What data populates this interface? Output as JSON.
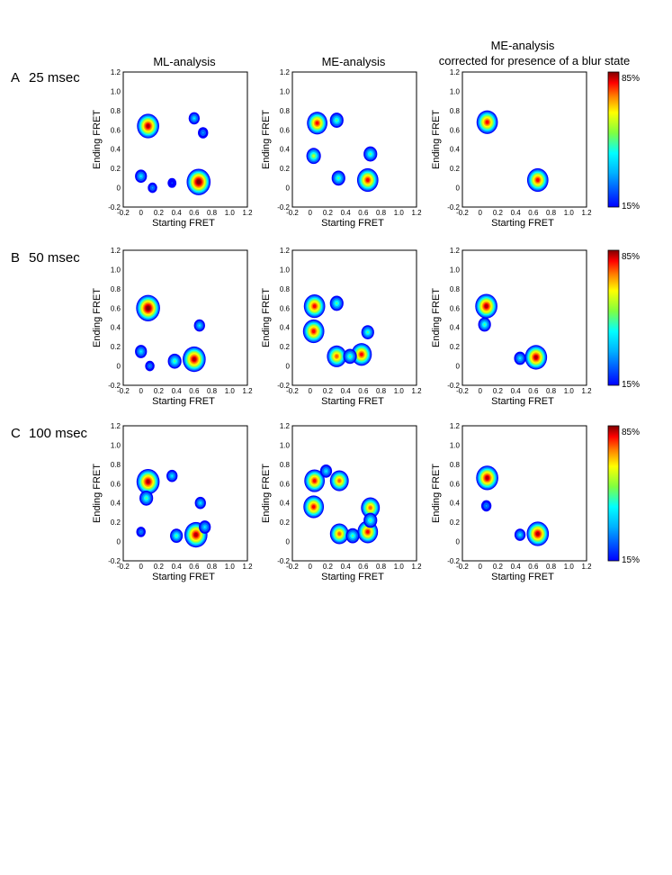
{
  "figure": {
    "columns": [
      "ML-analysis",
      "ME-analysis",
      "ME-analysis",
      "corrected for presence of a  blur state"
    ],
    "rows": [
      {
        "letter": "A",
        "label": "25 msec"
      },
      {
        "letter": "B",
        "label": "50 msec"
      },
      {
        "letter": "C",
        "label": "100 msec"
      }
    ],
    "colorbar": {
      "max_label": "85%",
      "min_label": "15%"
    }
  },
  "chart_data": [
    {
      "type": "heatmap",
      "row": "A",
      "column": "ML-analysis",
      "xlabel": "Starting FRET",
      "ylabel": "Ending FRET",
      "xlim": [
        -0.2,
        1.2
      ],
      "ylim": [
        -0.2,
        1.2
      ],
      "xticks": [
        "-0.2",
        "0",
        "0.2",
        "0.4",
        "0.6",
        "0.8",
        "1.0",
        "1.2"
      ],
      "yticks": [
        "-0.2",
        "0",
        "0.2",
        "0.4",
        "0.6",
        "0.8",
        "1.0",
        "1.2"
      ],
      "peaks": [
        {
          "x": 0.08,
          "y": 0.64,
          "intensity": 0.9
        },
        {
          "x": 0.65,
          "y": 0.06,
          "intensity": 1.0
        },
        {
          "x": 0.0,
          "y": 0.12,
          "intensity": 0.3
        },
        {
          "x": 0.6,
          "y": 0.72,
          "intensity": 0.25
        },
        {
          "x": 0.7,
          "y": 0.57,
          "intensity": 0.2
        },
        {
          "x": 0.13,
          "y": 0.0,
          "intensity": 0.15
        },
        {
          "x": 0.35,
          "y": 0.05,
          "intensity": 0.12
        }
      ]
    },
    {
      "type": "heatmap",
      "row": "A",
      "column": "ME-analysis",
      "xlabel": "Starting FRET",
      "ylabel": "Ending FRET",
      "xlim": [
        -0.2,
        1.2
      ],
      "ylim": [
        -0.2,
        1.2
      ],
      "xticks": [
        "-0.2",
        "0",
        "0.2",
        "0.4",
        "0.6",
        "0.8",
        "1.0",
        "1.2"
      ],
      "yticks": [
        "-0.2",
        "0",
        "0.2",
        "0.4",
        "0.6",
        "0.8",
        "1.0",
        "1.2"
      ],
      "peaks": [
        {
          "x": 0.08,
          "y": 0.67,
          "intensity": 0.8
        },
        {
          "x": 0.65,
          "y": 0.08,
          "intensity": 0.85
        },
        {
          "x": 0.04,
          "y": 0.33,
          "intensity": 0.45
        },
        {
          "x": 0.3,
          "y": 0.7,
          "intensity": 0.4
        },
        {
          "x": 0.32,
          "y": 0.1,
          "intensity": 0.4
        },
        {
          "x": 0.68,
          "y": 0.35,
          "intensity": 0.4
        }
      ]
    },
    {
      "type": "heatmap",
      "row": "A",
      "column": "ME-analysis corrected",
      "xlabel": "Starting FRET",
      "ylabel": "Ending FRET",
      "xlim": [
        -0.2,
        1.2
      ],
      "ylim": [
        -0.2,
        1.2
      ],
      "xticks": [
        "-0.2",
        "0",
        "0.2",
        "0.4",
        "0.6",
        "0.8",
        "1.0",
        "1.2"
      ],
      "yticks": [
        "-0.2",
        "0",
        "0.2",
        "0.4",
        "0.6",
        "0.8",
        "1.0",
        "1.2"
      ],
      "peaks": [
        {
          "x": 0.08,
          "y": 0.68,
          "intensity": 0.85
        },
        {
          "x": 0.65,
          "y": 0.08,
          "intensity": 0.85
        }
      ]
    },
    {
      "type": "heatmap",
      "row": "B",
      "column": "ML-analysis",
      "xlabel": "Starting FRET",
      "ylabel": "Ending FRET",
      "xlim": [
        -0.2,
        1.2
      ],
      "ylim": [
        -0.2,
        1.2
      ],
      "xticks": [
        "-0.2",
        "0",
        "0.2",
        "0.4",
        "0.6",
        "0.8",
        "1.0",
        "1.2"
      ],
      "yticks": [
        "-0.2",
        "0",
        "0.2",
        "0.4",
        "0.6",
        "0.8",
        "1.0",
        "1.2"
      ],
      "peaks": [
        {
          "x": 0.08,
          "y": 0.6,
          "intensity": 1.0
        },
        {
          "x": 0.6,
          "y": 0.07,
          "intensity": 0.95
        },
        {
          "x": 0.38,
          "y": 0.05,
          "intensity": 0.4
        },
        {
          "x": 0.0,
          "y": 0.15,
          "intensity": 0.3
        },
        {
          "x": 0.66,
          "y": 0.42,
          "intensity": 0.25
        },
        {
          "x": 0.1,
          "y": 0.0,
          "intensity": 0.15
        }
      ]
    },
    {
      "type": "heatmap",
      "row": "B",
      "column": "ME-analysis",
      "xlabel": "Starting FRET",
      "ylabel": "Ending FRET",
      "xlim": [
        -0.2,
        1.2
      ],
      "ylim": [
        -0.2,
        1.2
      ],
      "xticks": [
        "-0.2",
        "0",
        "0.2",
        "0.4",
        "0.6",
        "0.8",
        "1.0",
        "1.2"
      ],
      "yticks": [
        "-0.2",
        "0",
        "0.2",
        "0.4",
        "0.6",
        "0.8",
        "1.0",
        "1.2"
      ],
      "peaks": [
        {
          "x": 0.05,
          "y": 0.62,
          "intensity": 0.85
        },
        {
          "x": 0.04,
          "y": 0.36,
          "intensity": 0.85
        },
        {
          "x": 0.3,
          "y": 0.1,
          "intensity": 0.75
        },
        {
          "x": 0.58,
          "y": 0.12,
          "intensity": 0.8
        },
        {
          "x": 0.3,
          "y": 0.65,
          "intensity": 0.4
        },
        {
          "x": 0.65,
          "y": 0.35,
          "intensity": 0.35
        },
        {
          "x": 0.45,
          "y": 0.1,
          "intensity": 0.4
        }
      ]
    },
    {
      "type": "heatmap",
      "row": "B",
      "column": "ME-analysis corrected",
      "xlabel": "Starting FRET",
      "ylabel": "Ending FRET",
      "xlim": [
        -0.2,
        1.2
      ],
      "ylim": [
        -0.2,
        1.2
      ],
      "xticks": [
        "-0.2",
        "0",
        "0.2",
        "0.4",
        "0.6",
        "0.8",
        "1.0",
        "1.2"
      ],
      "yticks": [
        "-0.2",
        "0",
        "0.2",
        "0.4",
        "0.6",
        "0.8",
        "1.0",
        "1.2"
      ],
      "peaks": [
        {
          "x": 0.07,
          "y": 0.62,
          "intensity": 0.9
        },
        {
          "x": 0.63,
          "y": 0.09,
          "intensity": 0.9
        },
        {
          "x": 0.05,
          "y": 0.43,
          "intensity": 0.35
        },
        {
          "x": 0.45,
          "y": 0.08,
          "intensity": 0.3
        }
      ]
    },
    {
      "type": "heatmap",
      "row": "C",
      "column": "ML-analysis",
      "xlabel": "Starting FRET",
      "ylabel": "Ending FRET",
      "xlim": [
        -0.2,
        1.2
      ],
      "ylim": [
        -0.2,
        1.2
      ],
      "xticks": [
        "-0.2",
        "0",
        "0.2",
        "0.4",
        "0.6",
        "0.8",
        "1.0",
        "1.2"
      ],
      "yticks": [
        "-0.2",
        "0",
        "0.2",
        "0.4",
        "0.6",
        "0.8",
        "1.0",
        "1.2"
      ],
      "peaks": [
        {
          "x": 0.08,
          "y": 0.62,
          "intensity": 0.95
        },
        {
          "x": 0.62,
          "y": 0.07,
          "intensity": 0.95
        },
        {
          "x": 0.06,
          "y": 0.45,
          "intensity": 0.4
        },
        {
          "x": 0.4,
          "y": 0.06,
          "intensity": 0.35
        },
        {
          "x": 0.35,
          "y": 0.68,
          "intensity": 0.25
        },
        {
          "x": 0.67,
          "y": 0.4,
          "intensity": 0.25
        },
        {
          "x": 0.0,
          "y": 0.1,
          "intensity": 0.15
        },
        {
          "x": 0.72,
          "y": 0.15,
          "intensity": 0.3
        }
      ]
    },
    {
      "type": "heatmap",
      "row": "C",
      "column": "ME-analysis",
      "xlabel": "Starting FRET",
      "ylabel": "Ending FRET",
      "xlim": [
        -0.2,
        1.2
      ],
      "ylim": [
        -0.2,
        1.2
      ],
      "xticks": [
        "-0.2",
        "0",
        "0.2",
        "0.4",
        "0.6",
        "0.8",
        "1.0",
        "1.2"
      ],
      "yticks": [
        "-0.2",
        "0",
        "0.2",
        "0.4",
        "0.6",
        "0.8",
        "1.0",
        "1.2"
      ],
      "peaks": [
        {
          "x": 0.05,
          "y": 0.63,
          "intensity": 0.8
        },
        {
          "x": 0.04,
          "y": 0.36,
          "intensity": 0.8
        },
        {
          "x": 0.33,
          "y": 0.63,
          "intensity": 0.7
        },
        {
          "x": 0.33,
          "y": 0.08,
          "intensity": 0.7
        },
        {
          "x": 0.65,
          "y": 0.1,
          "intensity": 0.8
        },
        {
          "x": 0.68,
          "y": 0.35,
          "intensity": 0.7
        },
        {
          "x": 0.68,
          "y": 0.22,
          "intensity": 0.4
        },
        {
          "x": 0.48,
          "y": 0.06,
          "intensity": 0.4
        },
        {
          "x": 0.18,
          "y": 0.73,
          "intensity": 0.3
        }
      ]
    },
    {
      "type": "heatmap",
      "row": "C",
      "column": "ME-analysis corrected",
      "xlabel": "Starting FRET",
      "ylabel": "Ending FRET",
      "xlim": [
        -0.2,
        1.2
      ],
      "ylim": [
        -0.2,
        1.2
      ],
      "xticks": [
        "-0.2",
        "0",
        "0.2",
        "0.4",
        "0.6",
        "0.8",
        "1.0",
        "1.2"
      ],
      "yticks": [
        "-0.2",
        "0",
        "0.2",
        "0.4",
        "0.6",
        "0.8",
        "1.0",
        "1.2"
      ],
      "peaks": [
        {
          "x": 0.08,
          "y": 0.66,
          "intensity": 0.9
        },
        {
          "x": 0.65,
          "y": 0.08,
          "intensity": 0.9
        },
        {
          "x": 0.07,
          "y": 0.37,
          "intensity": 0.2
        },
        {
          "x": 0.45,
          "y": 0.07,
          "intensity": 0.25
        }
      ]
    }
  ],
  "colors": {
    "low": "#0000ff",
    "mid": "#00ffff",
    "high": "#800000"
  }
}
